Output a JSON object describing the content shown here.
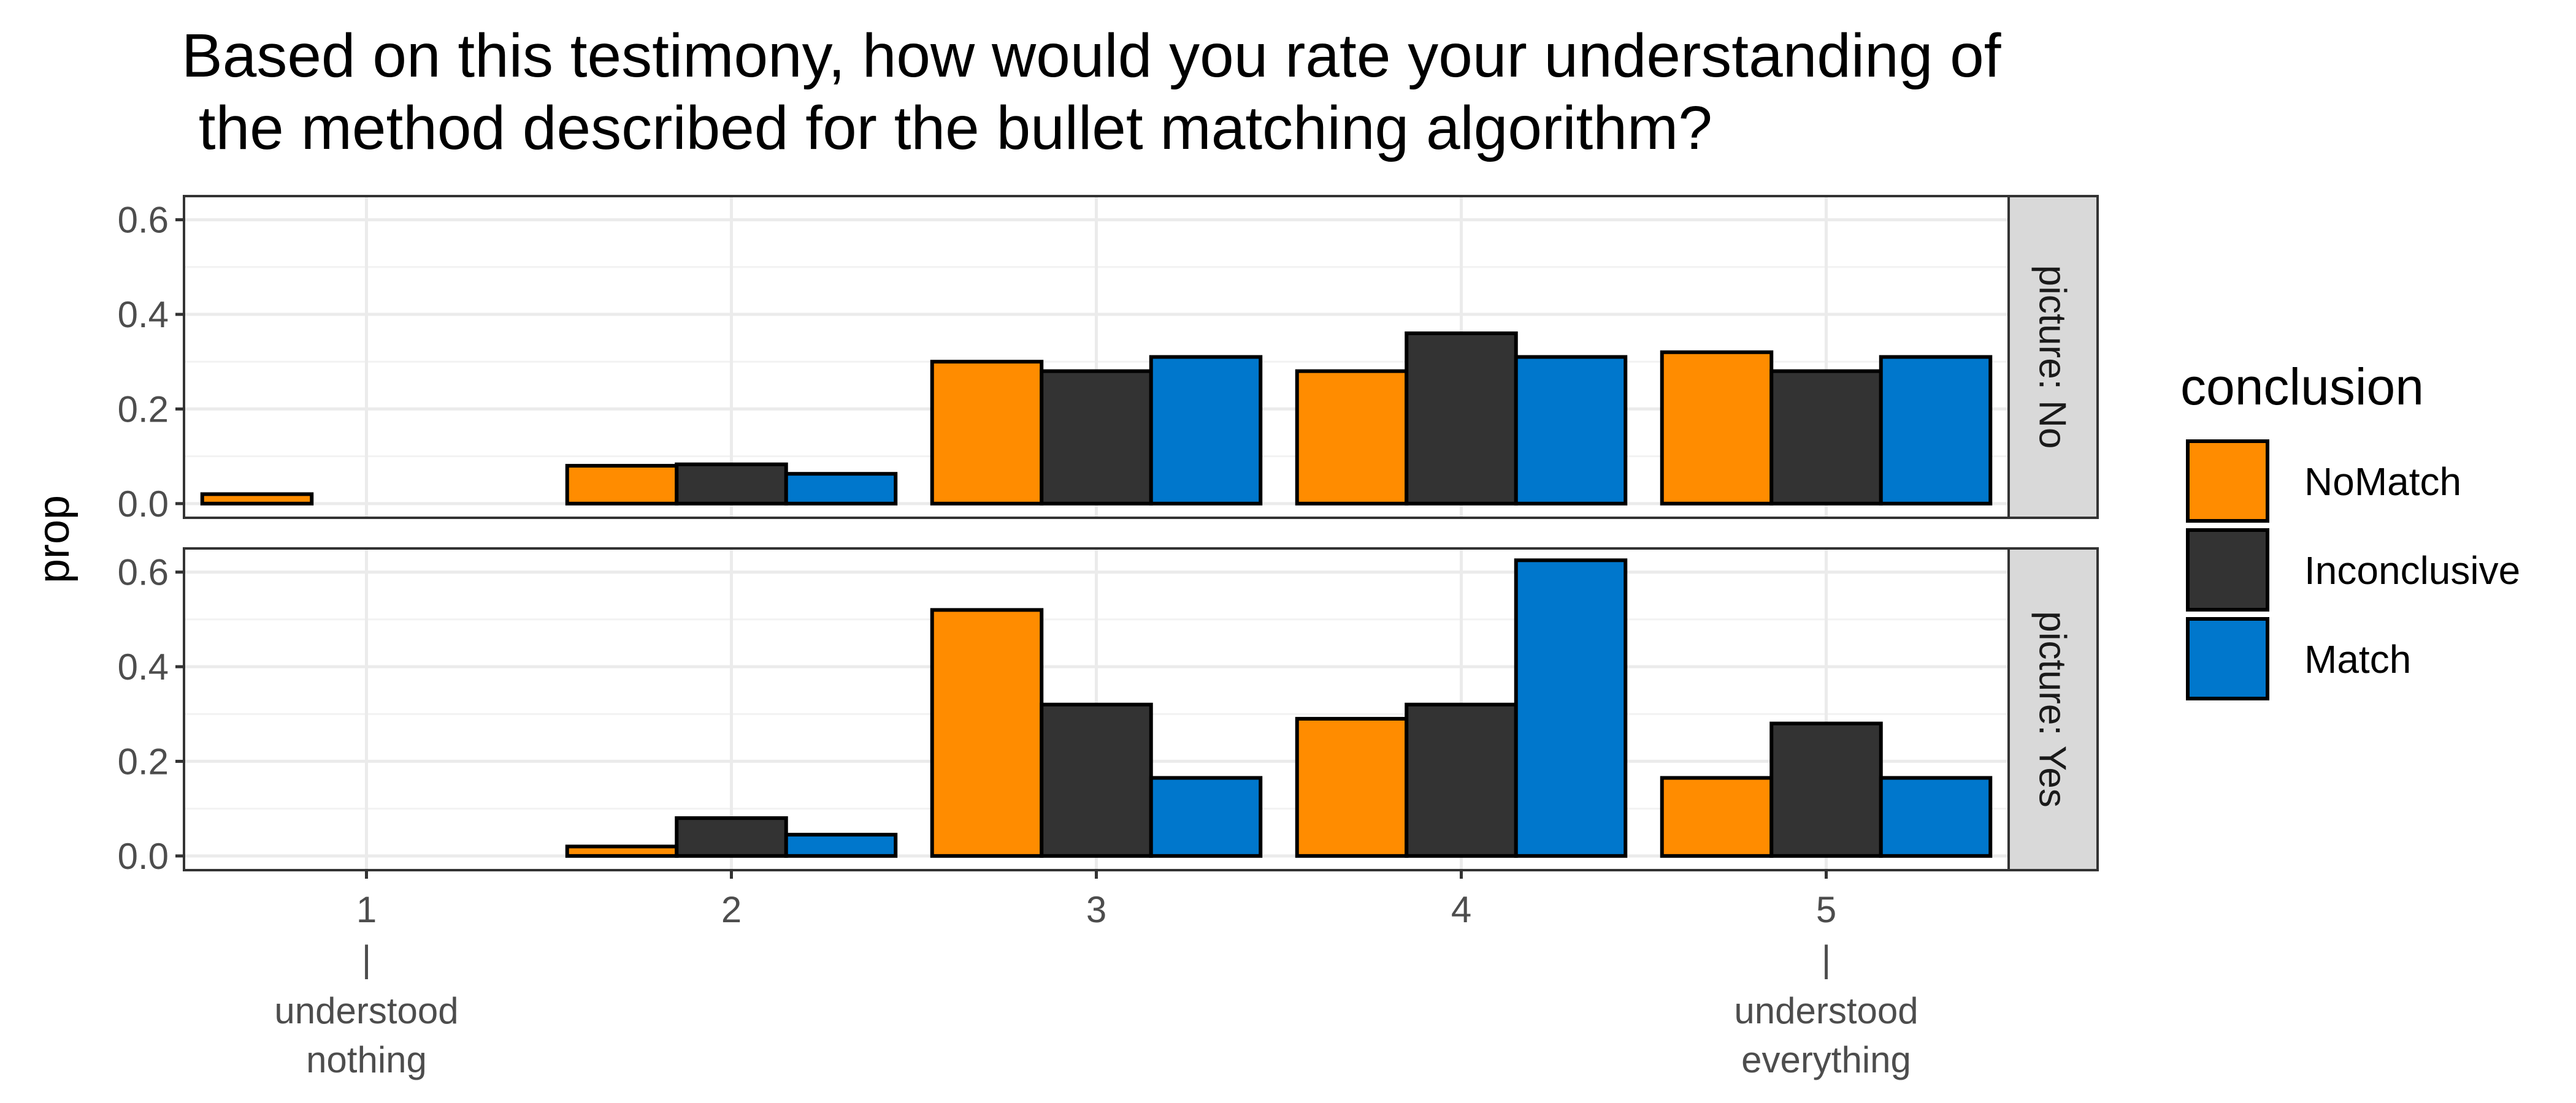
{
  "chart_data": {
    "type": "bar",
    "title_lines": [
      "Based on this testimony, how would you rate your understanding of",
      " the method described for the bullet matching algorithm?"
    ],
    "xlabel": "",
    "ylabel": "prop",
    "categories": [
      "1",
      "2",
      "3",
      "4",
      "5"
    ],
    "category_annotations": [
      {
        "category": "1",
        "lines": [
          "|",
          "understood",
          "nothing"
        ]
      },
      {
        "category": "5",
        "lines": [
          "|",
          "understood",
          "everything"
        ]
      }
    ],
    "y_ticks": [
      "0.0",
      "0.2",
      "0.4",
      "0.6"
    ],
    "ylim": [
      -0.03,
      0.65
    ],
    "grid": true,
    "legend": {
      "title": "conclusion",
      "placement": "right",
      "entries": [
        "NoMatch",
        "Inconclusive",
        "Match"
      ]
    },
    "colors": {
      "NoMatch": "#FF8C00",
      "Inconclusive": "#333333",
      "Match": "#0077CC"
    },
    "panels": [
      {
        "label": "picture: No",
        "series": [
          {
            "name": "NoMatch",
            "values": [
              0.02,
              0.08,
              0.3,
              0.28,
              0.32
            ]
          },
          {
            "name": "Inconclusive",
            "values": [
              null,
              0.083,
              0.28,
              0.36,
              0.28
            ]
          },
          {
            "name": "Match",
            "values": [
              null,
              0.063,
              0.31,
              0.31,
              0.31
            ]
          }
        ]
      },
      {
        "label": "picture: Yes",
        "series": [
          {
            "name": "NoMatch",
            "values": [
              null,
              0.02,
              0.52,
              0.29,
              0.165
            ]
          },
          {
            "name": "Inconclusive",
            "values": [
              null,
              0.08,
              0.32,
              0.32,
              0.28
            ]
          },
          {
            "name": "Match",
            "values": [
              null,
              0.045,
              0.165,
              0.625,
              0.165
            ]
          }
        ]
      }
    ]
  }
}
